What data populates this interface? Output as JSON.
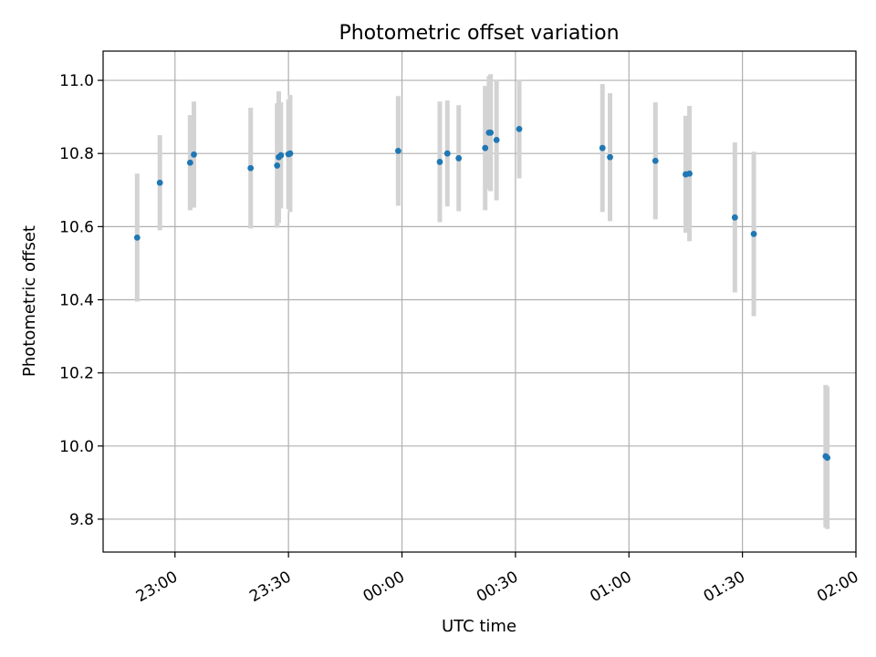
{
  "chart_data": {
    "type": "scatter",
    "title": "Photometric offset variation",
    "xlabel": "UTC time",
    "ylabel": "Photometric offset",
    "grid": true,
    "xlim": [
      "22:41",
      "02:00"
    ],
    "ylim": [
      9.71,
      11.08
    ],
    "xticks": [
      "23:00",
      "23:30",
      "00:00",
      "00:30",
      "01:00",
      "01:30",
      "02:00"
    ],
    "yticks": [
      "9.8",
      "10.0",
      "10.2",
      "10.4",
      "10.6",
      "10.8",
      "11.0"
    ],
    "marker_color": "#1f77b4",
    "errorbar_color": "#d3d3d3",
    "points": [
      {
        "t": "22:50",
        "y": 10.57,
        "err": 0.175
      },
      {
        "t": "22:56",
        "y": 10.72,
        "err": 0.13
      },
      {
        "t": "23:04",
        "y": 10.775,
        "err": 0.13
      },
      {
        "t": "23:05",
        "y": 10.797,
        "err": 0.145
      },
      {
        "t": "23:20",
        "y": 10.76,
        "err": 0.165
      },
      {
        "t": "23:27",
        "y": 10.767,
        "err": 0.17
      },
      {
        "t": "23:27",
        "y": 10.79,
        "err": 0.18
      },
      {
        "t": "23:28",
        "y": 10.795,
        "err": 0.145
      },
      {
        "t": "23:30",
        "y": 10.798,
        "err": 0.15
      },
      {
        "t": "23:30",
        "y": 10.8,
        "err": 0.16
      },
      {
        "t": "23:59",
        "y": 10.807,
        "err": 0.15
      },
      {
        "t": "00:10",
        "y": 10.777,
        "err": 0.165
      },
      {
        "t": "00:12",
        "y": 10.8,
        "err": 0.145
      },
      {
        "t": "00:15",
        "y": 10.787,
        "err": 0.145
      },
      {
        "t": "00:22",
        "y": 10.815,
        "err": 0.17
      },
      {
        "t": "00:23",
        "y": 10.857,
        "err": 0.155
      },
      {
        "t": "00:23",
        "y": 10.857,
        "err": 0.16
      },
      {
        "t": "00:25",
        "y": 10.837,
        "err": 0.165
      },
      {
        "t": "00:31",
        "y": 10.867,
        "err": 0.135
      },
      {
        "t": "00:53",
        "y": 10.815,
        "err": 0.175
      },
      {
        "t": "00:55",
        "y": 10.79,
        "err": 0.175
      },
      {
        "t": "01:07",
        "y": 10.78,
        "err": 0.16
      },
      {
        "t": "01:15",
        "y": 10.743,
        "err": 0.16
      },
      {
        "t": "01:16",
        "y": 10.745,
        "err": 0.185
      },
      {
        "t": "01:28",
        "y": 10.625,
        "err": 0.205
      },
      {
        "t": "01:33",
        "y": 10.58,
        "err": 0.225
      },
      {
        "t": "01:52",
        "y": 9.972,
        "err": 0.195
      },
      {
        "t": "01:52",
        "y": 9.968,
        "err": 0.195
      }
    ]
  }
}
